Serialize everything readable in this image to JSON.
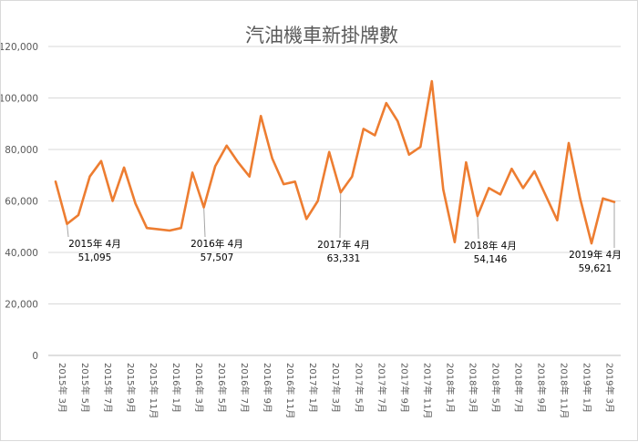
{
  "chart_data": {
    "type": "line",
    "title": "汽油機車新掛牌數",
    "xlabel": "",
    "ylabel": "",
    "ylim": [
      0,
      120000
    ],
    "yticks": [
      0,
      20000,
      40000,
      60000,
      80000,
      100000,
      120000
    ],
    "ytick_labels": [
      "0",
      "20,000",
      "40,000",
      "60,000",
      "80,000",
      "100,000",
      "120,000"
    ],
    "grid": true,
    "legend": "none",
    "line_color": "#ED7D31",
    "categories": [
      "2015年 3月",
      "2015年 4月",
      "2015年 5月",
      "2015年 6月",
      "2015年 7月",
      "2015年 8月",
      "2015年 9月",
      "2015年 10月",
      "2015年 11月",
      "2015年 12月",
      "2016年 1月",
      "2016年 2月",
      "2016年 3月",
      "2016年 4月",
      "2016年 5月",
      "2016年 6月",
      "2016年 7月",
      "2016年 8月",
      "2016年 9月",
      "2016年 10月",
      "2016年 11月",
      "2016年 12月",
      "2017年 1月",
      "2017年 2月",
      "2017年 3月",
      "2017年 4月",
      "2017年 5月",
      "2017年 6月",
      "2017年 7月",
      "2017年 8月",
      "2017年 9月",
      "2017年 10月",
      "2017年 11月",
      "2017年 12月",
      "2018年 1月",
      "2018年 2月",
      "2018年 3月",
      "2018年 4月",
      "2018年 5月",
      "2018年 6月",
      "2018年 7月",
      "2018年 8月",
      "2018年 9月",
      "2018年 10月",
      "2018年 11月",
      "2018年 12月",
      "2019年 1月",
      "2019年 2月",
      "2019年 3月",
      "2019年 4月"
    ],
    "x_tick_labels": [
      "2015年 3月",
      "2015年 5月",
      "2015年 7月",
      "2015年 9月",
      "2015年 11月",
      "2016年 1月",
      "2016年 3月",
      "2016年 5月",
      "2016年 7月",
      "2016年 9月",
      "2016年 11月",
      "2017年 1月",
      "2017年 3月",
      "2017年 5月",
      "2017年 7月",
      "2017年 9月",
      "2017年 11月",
      "2018年 1月",
      "2018年 3月",
      "2018年 5月",
      "2018年 7月",
      "2018年 9月",
      "2018年 11月",
      "2019年 1月",
      "2019年 3月"
    ],
    "values": [
      67500,
      51095,
      54500,
      69500,
      75500,
      60000,
      73000,
      59000,
      49500,
      49000,
      48500,
      49500,
      71000,
      57507,
      73500,
      81500,
      75000,
      69500,
      93000,
      76500,
      66500,
      67500,
      53000,
      60000,
      79000,
      63331,
      69500,
      88000,
      85500,
      98000,
      91000,
      78000,
      81000,
      106500,
      64500,
      44000,
      75000,
      54146,
      65000,
      62500,
      72500,
      65000,
      71500,
      62000,
      52500,
      82500,
      61000,
      43500,
      61000,
      59621
    ],
    "annotations": [
      {
        "index": 1,
        "label": "2015年 4月",
        "value_label": "51,095"
      },
      {
        "index": 13,
        "label": "2016年 4月",
        "value_label": "57,507"
      },
      {
        "index": 25,
        "label": "2017年 4月",
        "value_label": "63,331"
      },
      {
        "index": 37,
        "label": "2018年 4月",
        "value_label": "54,146"
      },
      {
        "index": 49,
        "label": "2019年 4月",
        "value_label": "59,621"
      }
    ]
  }
}
